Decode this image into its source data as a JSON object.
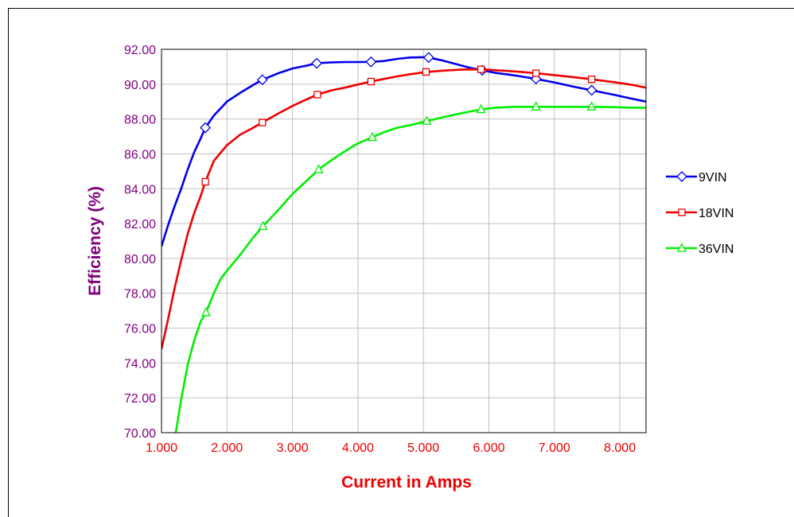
{
  "chart_data": {
    "type": "line",
    "title": "",
    "xlabel": "Current in Amps",
    "ylabel": "Efficiency (%)",
    "xlim": [
      1.0,
      8.4
    ],
    "ylim": [
      70.0,
      92.0
    ],
    "x_ticks": [
      "1.000",
      "2.000",
      "3.000",
      "4.000",
      "5.000",
      "6.000",
      "7.000",
      "8.000"
    ],
    "x_tick_values": [
      1,
      2,
      3,
      4,
      5,
      6,
      7,
      8
    ],
    "y_ticks": [
      "70.00",
      "72.00",
      "74.00",
      "76.00",
      "78.00",
      "80.00",
      "82.00",
      "84.00",
      "86.00",
      "88.00",
      "90.00",
      "92.00"
    ],
    "y_tick_values": [
      70,
      72,
      74,
      76,
      78,
      80,
      82,
      84,
      86,
      88,
      90,
      92
    ],
    "grid": true,
    "legend_position": "right",
    "series": [
      {
        "name": "9VIN",
        "color": "#0000ee",
        "marker": "diamond",
        "x": [
          1.0,
          1.1,
          1.2,
          1.3,
          1.4,
          1.5,
          1.6,
          1.67,
          1.8,
          2.0,
          2.2,
          2.4,
          2.54,
          2.8,
          3.0,
          3.2,
          3.37,
          3.6,
          3.8,
          4.0,
          4.2,
          4.4,
          4.6,
          4.8,
          5.0,
          5.08,
          5.3,
          5.5,
          5.7,
          5.9,
          6.1,
          6.4,
          6.72,
          7.0,
          7.3,
          7.57,
          7.9,
          8.2,
          8.4
        ],
        "y": [
          80.7,
          81.9,
          83.0,
          84.0,
          85.1,
          86.1,
          86.9,
          87.5,
          88.2,
          89.0,
          89.5,
          89.95,
          90.25,
          90.65,
          90.9,
          91.05,
          91.2,
          91.25,
          91.27,
          91.27,
          91.28,
          91.33,
          91.45,
          91.53,
          91.55,
          91.53,
          91.35,
          91.15,
          90.95,
          90.8,
          90.65,
          90.5,
          90.3,
          90.1,
          89.85,
          89.65,
          89.4,
          89.15,
          89.0
        ],
        "marker_x": [
          1.67,
          2.54,
          3.37,
          4.2,
          5.08,
          5.9,
          6.72,
          7.57
        ],
        "marker_y": [
          87.5,
          90.25,
          91.2,
          91.28,
          91.53,
          90.8,
          90.3,
          89.65
        ]
      },
      {
        "name": "18VIN",
        "color": "#ee0000",
        "marker": "square",
        "x": [
          1.0,
          1.1,
          1.2,
          1.3,
          1.4,
          1.5,
          1.6,
          1.67,
          1.8,
          2.0,
          2.2,
          2.4,
          2.54,
          2.8,
          3.0,
          3.2,
          3.38,
          3.6,
          3.8,
          4.0,
          4.2,
          4.4,
          4.6,
          4.8,
          5.0,
          5.2,
          5.4,
          5.6,
          5.88,
          6.1,
          6.4,
          6.72,
          7.0,
          7.3,
          7.57,
          7.9,
          8.2,
          8.4
        ],
        "y": [
          74.8,
          76.5,
          78.3,
          79.9,
          81.4,
          82.6,
          83.6,
          84.4,
          85.6,
          86.5,
          87.1,
          87.5,
          87.8,
          88.35,
          88.75,
          89.1,
          89.4,
          89.65,
          89.8,
          89.98,
          90.15,
          90.3,
          90.45,
          90.57,
          90.67,
          90.75,
          90.8,
          90.84,
          90.85,
          90.8,
          90.73,
          90.63,
          90.52,
          90.4,
          90.28,
          90.12,
          89.95,
          89.8
        ],
        "marker_x": [
          1.67,
          2.54,
          3.38,
          4.2,
          5.04,
          5.88,
          6.72,
          7.57
        ],
        "marker_y": [
          84.4,
          87.8,
          89.4,
          90.15,
          90.7,
          90.85,
          90.63,
          90.28
        ]
      },
      {
        "name": "36VIN",
        "color": "#00ee00",
        "marker": "triangle",
        "x": [
          1.2,
          1.3,
          1.4,
          1.5,
          1.6,
          1.68,
          1.8,
          1.9,
          2.0,
          2.2,
          2.4,
          2.55,
          2.8,
          3.0,
          3.2,
          3.4,
          3.6,
          3.8,
          4.0,
          4.22,
          4.4,
          4.6,
          4.8,
          5.05,
          5.3,
          5.6,
          5.88,
          6.1,
          6.4,
          6.72,
          7.0,
          7.3,
          7.57,
          7.9,
          8.2,
          8.4
        ],
        "y": [
          69.6,
          71.9,
          73.9,
          75.3,
          76.4,
          76.9,
          78.0,
          78.8,
          79.3,
          80.2,
          81.2,
          81.85,
          82.85,
          83.7,
          84.4,
          85.1,
          85.65,
          86.15,
          86.6,
          86.95,
          87.25,
          87.5,
          87.65,
          87.88,
          88.1,
          88.35,
          88.55,
          88.65,
          88.7,
          88.7,
          88.7,
          88.7,
          88.7,
          88.68,
          88.65,
          88.65
        ],
        "marker_x": [
          1.68,
          2.55,
          3.4,
          4.22,
          5.05,
          5.88,
          6.72,
          7.57
        ],
        "marker_y": [
          76.9,
          81.85,
          85.1,
          86.95,
          87.88,
          88.55,
          88.7,
          88.7
        ]
      }
    ]
  }
}
